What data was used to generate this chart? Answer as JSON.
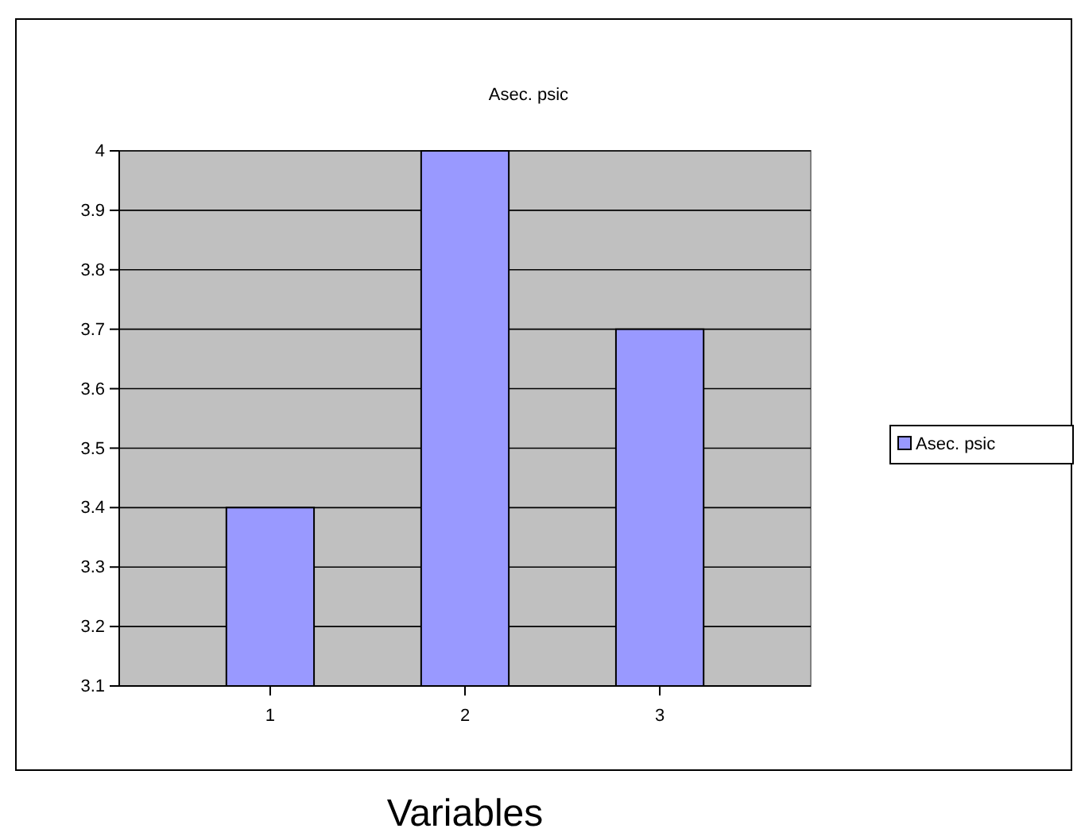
{
  "chart_data": {
    "type": "bar",
    "title": "Asec. psic",
    "xlabel": "Variables",
    "categories": [
      "1",
      "2",
      "3"
    ],
    "series": [
      {
        "name": "Asec. psic",
        "color": "#9999ff",
        "values": [
          3.4,
          4.0,
          3.7
        ]
      }
    ],
    "ylim": [
      3.1,
      4
    ],
    "yticks": [
      3.1,
      3.2,
      3.3,
      3.4,
      3.5,
      3.6,
      3.7,
      3.8,
      3.9,
      4
    ],
    "grid": "y",
    "legend": "right"
  }
}
